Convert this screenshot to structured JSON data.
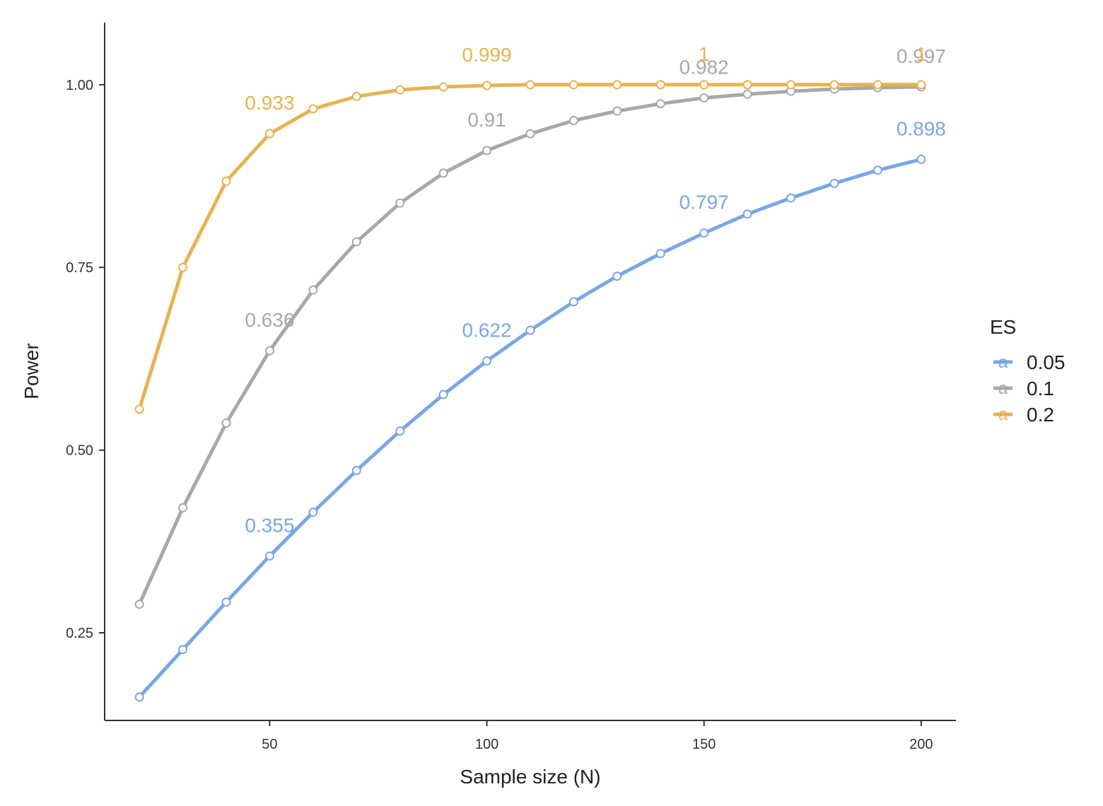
{
  "chart_data": {
    "type": "line",
    "xlabel": "Sample size (N)",
    "ylabel": "Power",
    "xlim": [
      12,
      208
    ],
    "ylim": [
      0.13,
      1.085
    ],
    "x_ticks": [
      50,
      100,
      150,
      200
    ],
    "x_tick_labels": [
      "50",
      "100",
      "150",
      "200"
    ],
    "y_ticks": [
      0.25,
      0.5,
      0.75,
      1.0
    ],
    "y_tick_labels": [
      "0.25",
      "0.50",
      "0.75",
      "1.00"
    ],
    "grid": false,
    "legend": {
      "title": "ES",
      "position": "right"
    },
    "x": [
      20,
      30,
      40,
      50,
      60,
      70,
      80,
      90,
      100,
      110,
      120,
      130,
      140,
      150,
      160,
      170,
      180,
      190,
      200
    ],
    "series": [
      {
        "name": "0.05",
        "color": "#7ba6e4",
        "values": [
          0.162,
          0.227,
          0.292,
          0.355,
          0.415,
          0.472,
          0.526,
          0.576,
          0.622,
          0.664,
          0.703,
          0.738,
          0.769,
          0.797,
          0.823,
          0.845,
          0.865,
          0.883,
          0.898
        ],
        "labels": [
          {
            "x": 50,
            "value": 0.355,
            "text": "0.355"
          },
          {
            "x": 100,
            "value": 0.622,
            "text": "0.622"
          },
          {
            "x": 150,
            "value": 0.797,
            "text": "0.797"
          },
          {
            "x": 200,
            "value": 0.898,
            "text": "0.898"
          }
        ]
      },
      {
        "name": "0.1",
        "color": "#a8a8a8",
        "values": [
          0.289,
          0.421,
          0.537,
          0.636,
          0.719,
          0.785,
          0.838,
          0.879,
          0.91,
          0.933,
          0.951,
          0.964,
          0.974,
          0.982,
          0.987,
          0.991,
          0.994,
          0.996,
          0.997
        ],
        "labels": [
          {
            "x": 50,
            "value": 0.636,
            "text": "0.636"
          },
          {
            "x": 100,
            "value": 0.91,
            "text": "0.91"
          },
          {
            "x": 150,
            "value": 0.982,
            "text": "0.982"
          },
          {
            "x": 200,
            "value": 0.997,
            "text": "0.997"
          }
        ]
      },
      {
        "name": "0.2",
        "color": "#e5b350",
        "values": [
          0.556,
          0.75,
          0.868,
          0.933,
          0.967,
          0.984,
          0.993,
          0.997,
          0.999,
          1.0,
          1.0,
          1.0,
          1.0,
          1.0,
          1.0,
          1.0,
          1.0,
          1.0,
          1.0
        ],
        "labels": [
          {
            "x": 50,
            "value": 0.933,
            "text": "0.933"
          },
          {
            "x": 100,
            "value": 0.999,
            "text": "0.999"
          },
          {
            "x": 150,
            "value": 1.0,
            "text": "1"
          },
          {
            "x": 200,
            "value": 1.0,
            "text": "1"
          }
        ]
      }
    ]
  }
}
